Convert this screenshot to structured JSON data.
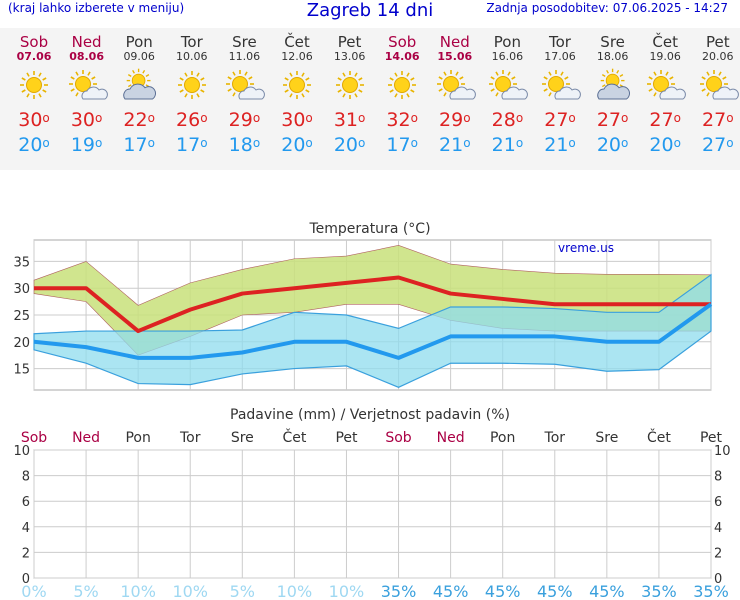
{
  "header": {
    "menu_hint": "(kraj lahko izberete v meniju)",
    "title": "Zagreb 14 dni",
    "updated_label": "Zadnja posodobitev:",
    "updated_value": "07.06.2025 - 14:27"
  },
  "days": [
    {
      "name": "Sob",
      "date": "07.06",
      "weekend": true,
      "icon": "sun-icon",
      "tmax": "30",
      "tmin": "20"
    },
    {
      "name": "Ned",
      "date": "08.06",
      "weekend": true,
      "icon": "sun-cloud-icon",
      "tmax": "30",
      "tmin": "19"
    },
    {
      "name": "Pon",
      "date": "09.06",
      "weekend": false,
      "icon": "cloud-sun-icon",
      "tmax": "22",
      "tmin": "17"
    },
    {
      "name": "Tor",
      "date": "10.06",
      "weekend": false,
      "icon": "sun-icon",
      "tmax": "26",
      "tmin": "17"
    },
    {
      "name": "Sre",
      "date": "11.06",
      "weekend": false,
      "icon": "sun-cloud-icon",
      "tmax": "29",
      "tmin": "18"
    },
    {
      "name": "Čet",
      "date": "12.06",
      "weekend": false,
      "icon": "sun-icon",
      "tmax": "30",
      "tmin": "20"
    },
    {
      "name": "Pet",
      "date": "13.06",
      "weekend": false,
      "icon": "sun-icon",
      "tmax": "31",
      "tmin": "20"
    },
    {
      "name": "Sob",
      "date": "14.06",
      "weekend": true,
      "icon": "sun-icon",
      "tmax": "32",
      "tmin": "17"
    },
    {
      "name": "Ned",
      "date": "15.06",
      "weekend": true,
      "icon": "sun-cloud-icon",
      "tmax": "29",
      "tmin": "21"
    },
    {
      "name": "Pon",
      "date": "16.06",
      "weekend": false,
      "icon": "sun-cloud-icon",
      "tmax": "28",
      "tmin": "21"
    },
    {
      "name": "Tor",
      "date": "17.06",
      "weekend": false,
      "icon": "sun-cloud-icon",
      "tmax": "27",
      "tmin": "21"
    },
    {
      "name": "Sre",
      "date": "18.06",
      "weekend": false,
      "icon": "cloud-sun-icon",
      "tmax": "27",
      "tmin": "20"
    },
    {
      "name": "Čet",
      "date": "19.06",
      "weekend": false,
      "icon": "sun-cloud-icon",
      "tmax": "27",
      "tmin": "20"
    },
    {
      "name": "Pet",
      "date": "20.06",
      "weekend": false,
      "icon": "sun-cloud-icon",
      "tmax": "27",
      "tmin": "27"
    }
  ],
  "degree_symbol": "o",
  "colors": {
    "max": "#dd2222",
    "min": "#2299ee",
    "weekend": "#aa0044",
    "band_warm": "#c8e07a",
    "band_cold": "#8fdcee",
    "overlap": "#7fcf8f"
  },
  "chart_data": [
    {
      "type": "line",
      "title": "Temperatura (°C)",
      "watermark": "vreme.us",
      "ylim": [
        11,
        39
      ],
      "yticks": [
        "15",
        "20",
        "25",
        "30",
        "35"
      ],
      "grid": true,
      "series": [
        {
          "values": [
            30,
            30,
            22,
            26,
            29,
            30,
            31,
            32,
            29,
            28,
            27,
            27,
            27,
            27
          ]
        },
        {
          "values": [
            20,
            19,
            17,
            17,
            18,
            20,
            20,
            17,
            21,
            21,
            21,
            20,
            20,
            27
          ]
        }
      ],
      "max_band_upper": [
        31.5,
        35,
        26.8,
        31,
        33.5,
        35.5,
        36,
        38,
        34.5,
        33.5,
        32.8,
        32.6,
        32.6,
        32.5
      ],
      "max_band_lower": [
        29,
        27.5,
        17.5,
        21,
        25,
        25.5,
        27,
        27,
        24,
        22.5,
        22,
        22,
        22,
        22
      ],
      "min_band_upper": [
        21.5,
        22,
        22,
        22,
        22.2,
        25.5,
        25,
        22.5,
        26.5,
        26.5,
        26.2,
        25.5,
        25.5,
        32.5
      ],
      "min_band_lower": [
        18.5,
        16,
        12.2,
        12,
        14,
        15,
        15.5,
        11.5,
        16,
        16,
        15.8,
        14.5,
        14.8,
        22
      ]
    },
    {
      "type": "bar",
      "title": "Padavine (mm) / Verjetnost padavin (%)",
      "categories": [
        "Sob",
        "Ned",
        "Pon",
        "Tor",
        "Sre",
        "Čet",
        "Pet",
        "Sob",
        "Ned",
        "Pon",
        "Tor",
        "Sre",
        "Čet",
        "Pet"
      ],
      "ylim": [
        0,
        10
      ],
      "yticks": [
        "0",
        "2",
        "4",
        "6",
        "8",
        "10"
      ],
      "values": [
        0,
        0,
        0,
        0,
        0,
        0,
        0,
        0,
        0,
        0,
        0,
        0,
        0,
        0
      ],
      "probability": [
        "0%",
        "5%",
        "10%",
        "10%",
        "5%",
        "10%",
        "10%",
        "35%",
        "45%",
        "45%",
        "45%",
        "45%",
        "35%",
        "35%"
      ],
      "probability_values": [
        0,
        5,
        10,
        10,
        5,
        10,
        10,
        35,
        45,
        45,
        45,
        45,
        35,
        35
      ]
    }
  ]
}
